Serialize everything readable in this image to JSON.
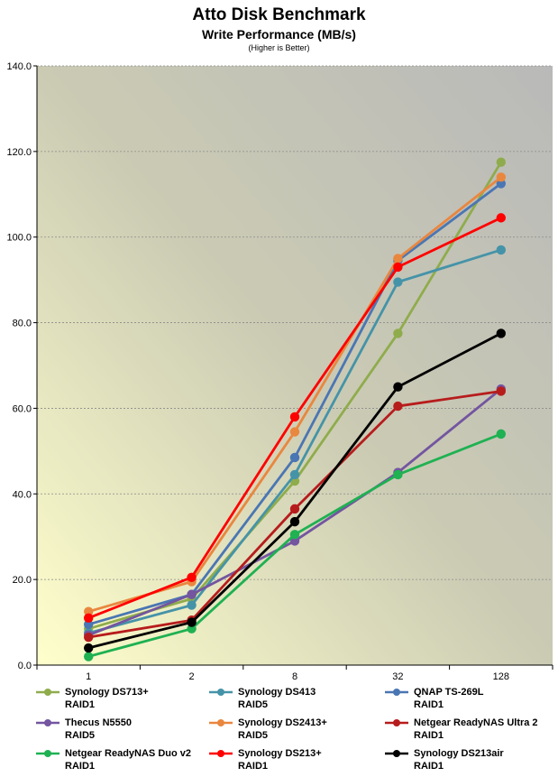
{
  "header": {
    "title": "Atto Disk Benchmark",
    "subtitle": "Write Performance (MB/s)",
    "note": "(Higher is Better)"
  },
  "chart_data": {
    "type": "line",
    "categories": [
      "1",
      "2",
      "8",
      "32",
      "128"
    ],
    "ylim": [
      0,
      140
    ],
    "yticks": [
      "0.0",
      "20.0",
      "40.0",
      "60.0",
      "80.0",
      "100.0",
      "120.0",
      "140.0"
    ],
    "grid": true,
    "legend_position": "bottom",
    "series": [
      {
        "name": "Synology DS713+",
        "config": "RAID1",
        "color": "#8fac4c",
        "values": [
          8.5,
          15.5,
          43,
          77.5,
          117.5
        ]
      },
      {
        "name": "Synology DS413",
        "config": "RAID5",
        "color": "#4593a8",
        "values": [
          7.5,
          14,
          44.5,
          89.5,
          97
        ]
      },
      {
        "name": "QNAP TS-269L",
        "config": "RAID1",
        "color": "#4a76b3",
        "values": [
          9.5,
          16.5,
          48.5,
          94.5,
          112.5
        ]
      },
      {
        "name": "Thecus N5550",
        "config": "RAID5",
        "color": "#7355a0",
        "values": [
          7,
          16.5,
          29,
          45,
          64.5
        ]
      },
      {
        "name": "Synology DS2413+",
        "config": "RAID5",
        "color": "#e9873f",
        "values": [
          12.5,
          19.5,
          54.5,
          95,
          114
        ]
      },
      {
        "name": "Netgear ReadyNAS Ultra 2",
        "config": "RAID1",
        "color": "#b71c1c",
        "values": [
          6.5,
          10.5,
          36.5,
          60.5,
          64
        ]
      },
      {
        "name": "Netgear ReadyNAS Duo v2",
        "config": "RAID1",
        "color": "#1fb152",
        "values": [
          2,
          8.5,
          30.5,
          44.5,
          54
        ]
      },
      {
        "name": "Synology DS213+",
        "config": "RAID1",
        "color": "#ff0000",
        "values": [
          11,
          20.5,
          58,
          93,
          104.5
        ]
      },
      {
        "name": "Synology DS213air",
        "config": "RAID1",
        "color": "#000000",
        "values": [
          4,
          10,
          33.5,
          65,
          77.5
        ]
      }
    ]
  }
}
